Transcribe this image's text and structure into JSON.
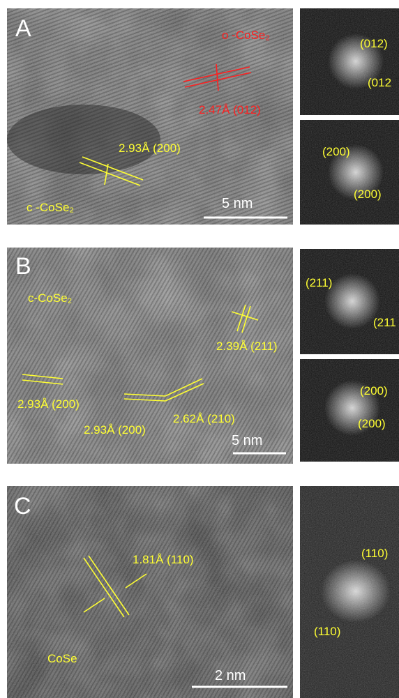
{
  "panels": [
    {
      "label": "A",
      "annotations": [
        "o -CoSe₂",
        "2.47Å (012)",
        "2.93Å (200)",
        "c -CoSe₂"
      ],
      "scale_bar": "5 nm",
      "fft": [
        [
          "(012)",
          "(012"
        ],
        [
          "(200)",
          "(200)"
        ]
      ]
    },
    {
      "label": "B",
      "annotations": [
        "c-CoSe₂",
        "2.39Å (211)",
        "2.93Å (200)",
        "2.93Å (200)",
        "2.62Å (210)"
      ],
      "scale_bar": "5 nm",
      "fft": [
        [
          "(211)",
          "(211"
        ],
        [
          "(200)",
          "(200)"
        ]
      ]
    },
    {
      "label": "C",
      "annotations": [
        "1.81Å (110)",
        "CoSe"
      ],
      "scale_bar": "2 nm",
      "fft": [
        [
          "(110)",
          "(110)"
        ]
      ]
    }
  ]
}
